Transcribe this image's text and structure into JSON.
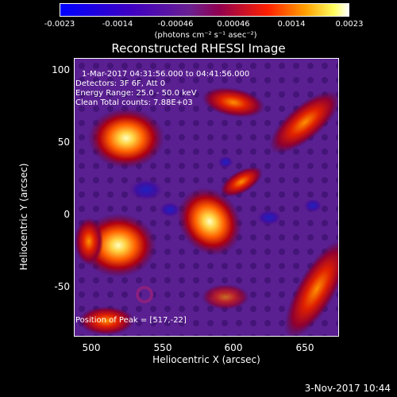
{
  "colorbar": {
    "ticks": [
      "-0.0023",
      "-0.0014",
      "-0.00046",
      "0.00046",
      "0.0014",
      "0.0023"
    ],
    "units": "(photons cm⁻² s⁻¹ asec⁻²)"
  },
  "plot": {
    "title": "Reconstructed RHESSI Image",
    "info_lines": [
      "1-Mar-2017 04:31:56.000 to 04:41:56.000",
      "Detectors: 3F 6F, Att 0",
      "Energy Range: 25.0 - 50.0 keV",
      "Clean     Total counts: 7.88E+03"
    ],
    "peak_label": "Position of Peak = [517,-22]",
    "x_axis_label": "Heliocentric X (arcsec)",
    "y_axis_label": "Heliocentric Y (arcsec)",
    "x_ticks": [
      "500",
      "550",
      "600",
      "650"
    ],
    "y_ticks": [
      "100",
      "50",
      "0",
      "-50"
    ]
  },
  "footer": {
    "timestamp": "3-Nov-2017 10:44"
  }
}
